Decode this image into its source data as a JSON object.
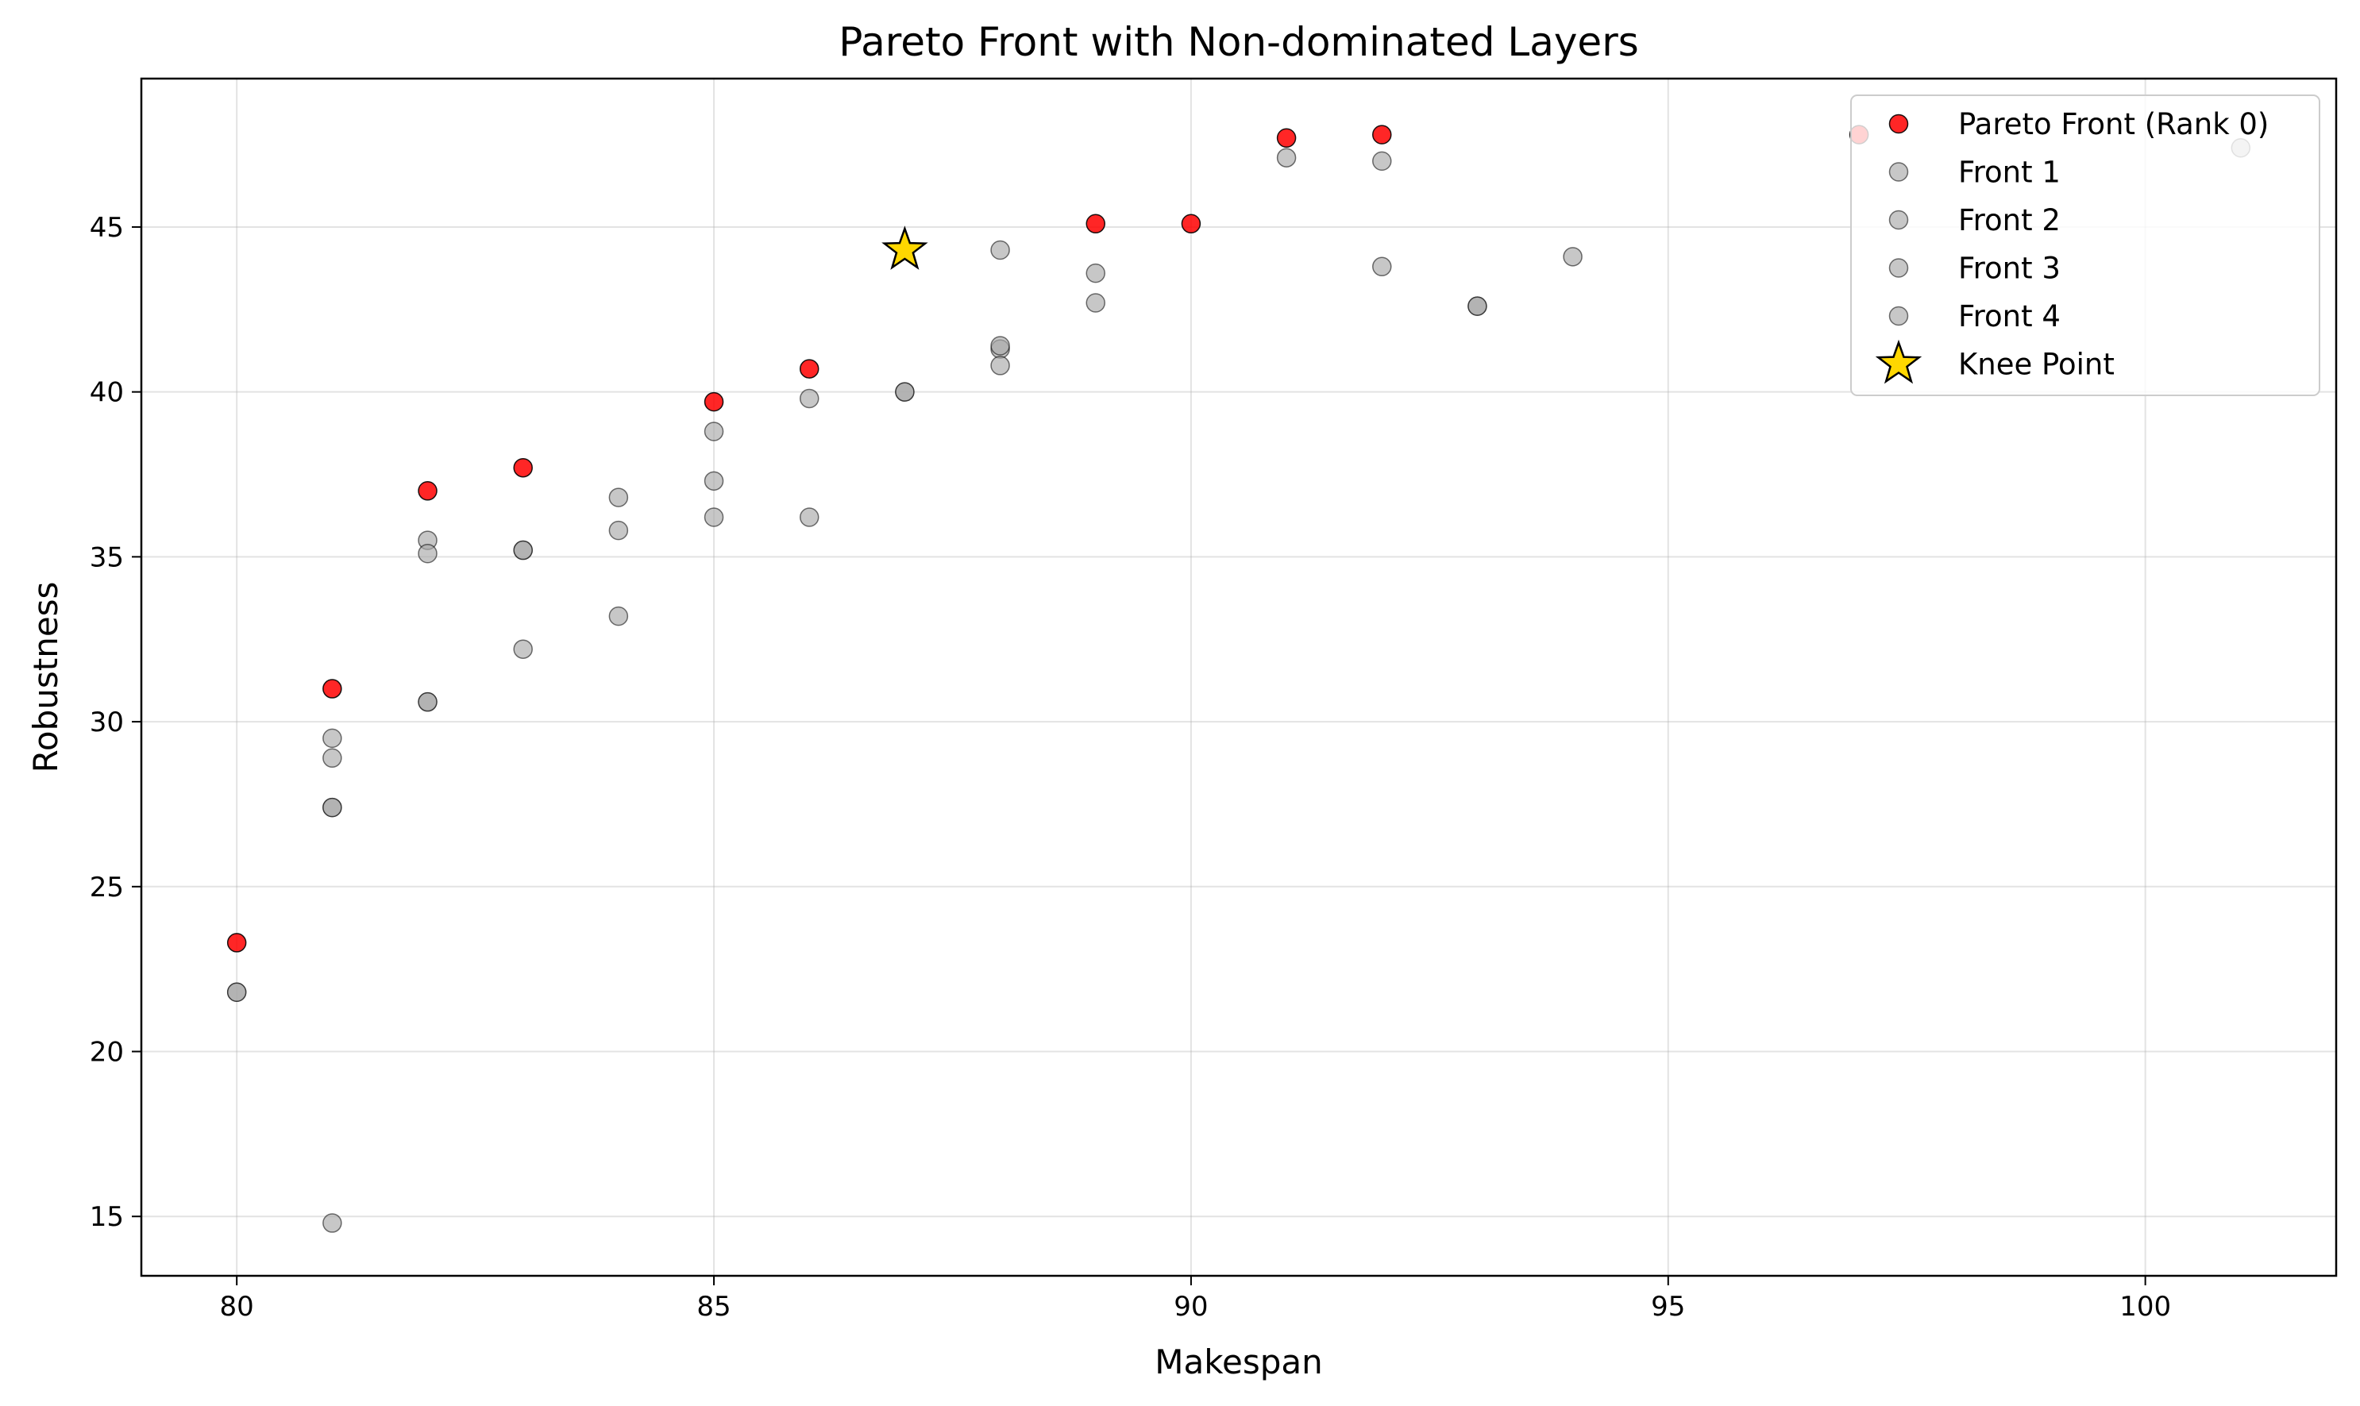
{
  "chart_data": {
    "type": "scatter",
    "title": "Pareto Front with Non-dominated Layers",
    "xlabel": "Makespan",
    "ylabel": "Robustness",
    "xlim": [
      79,
      102
    ],
    "ylim": [
      13.2,
      49.5
    ],
    "xticks": [
      80,
      85,
      90,
      95,
      100
    ],
    "yticks": [
      15,
      20,
      25,
      30,
      35,
      40,
      45
    ],
    "grid": true,
    "legend_position": "top-right",
    "series": [
      {
        "name": "Front 1",
        "color": "#a9a9a9",
        "points": [
          [
            80,
            21.8
          ],
          [
            81,
            27.4
          ],
          [
            82,
            30.6
          ],
          [
            83,
            35.2
          ],
          [
            84,
            35.8
          ],
          [
            85,
            38.8
          ],
          [
            86,
            39.8
          ],
          [
            87,
            40.0
          ],
          [
            88,
            41.3
          ],
          [
            89,
            43.6
          ],
          [
            91,
            47.1
          ],
          [
            92,
            47.0
          ],
          [
            93,
            42.6
          ],
          [
            101,
            47.4
          ]
        ]
      },
      {
        "name": "Front 2",
        "color": "#a9a9a9",
        "points": [
          [
            80,
            21.8
          ],
          [
            81,
            29.5
          ],
          [
            82,
            35.5
          ],
          [
            83,
            35.2
          ],
          [
            84,
            36.8
          ],
          [
            85,
            37.3
          ],
          [
            88,
            44.3
          ],
          [
            93,
            42.6
          ]
        ]
      },
      {
        "name": "Front 3",
        "color": "#a9a9a9",
        "points": [
          [
            81,
            27.4
          ],
          [
            82,
            35.1
          ],
          [
            84,
            33.2
          ],
          [
            85,
            36.2
          ],
          [
            86,
            36.2
          ],
          [
            87,
            40.0
          ],
          [
            88,
            41.4
          ],
          [
            89,
            42.7
          ],
          [
            92,
            43.8
          ],
          [
            94,
            44.1
          ]
        ]
      },
      {
        "name": "Front 4",
        "color": "#a9a9a9",
        "points": [
          [
            81,
            14.8
          ],
          [
            81,
            28.9
          ],
          [
            82,
            30.6
          ],
          [
            83,
            32.2
          ],
          [
            88,
            40.8
          ]
        ]
      },
      {
        "name": "Pareto Front (Rank 0)",
        "color": "#ff0000",
        "points": [
          [
            80,
            23.3
          ],
          [
            81,
            31.0
          ],
          [
            82,
            37.0
          ],
          [
            83,
            37.7
          ],
          [
            85,
            39.7
          ],
          [
            86,
            40.7
          ],
          [
            89,
            45.1
          ],
          [
            90,
            45.1
          ],
          [
            91,
            47.7
          ],
          [
            92,
            47.8
          ],
          [
            97,
            47.8
          ]
        ]
      },
      {
        "name": "Knee Point",
        "color": "#ffd700",
        "marker": "star",
        "points": [
          [
            87,
            44.3
          ]
        ]
      }
    ],
    "legend": [
      "Pareto Front (Rank 0)",
      "Front 1",
      "Front 2",
      "Front 3",
      "Front 4",
      "Knee Point"
    ]
  }
}
